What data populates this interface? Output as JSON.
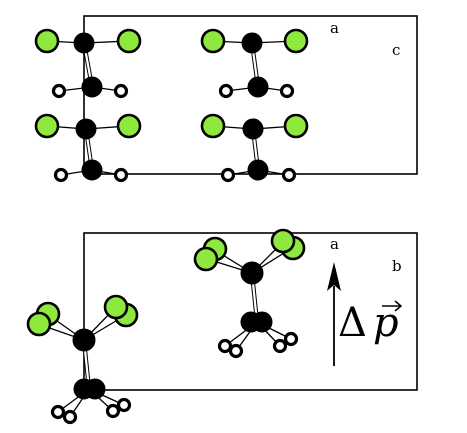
{
  "panels": {
    "top": {
      "axis_a": "a",
      "axis_c": "c"
    },
    "bottom": {
      "axis_a": "a",
      "axis_b": "b",
      "arrow_label_delta": "Δ",
      "arrow_label_p": "p"
    }
  },
  "atoms": {
    "carbon_color": "#000000",
    "chlorine_color": "#8ee83d",
    "hydrogen_color": "#ffffff"
  }
}
